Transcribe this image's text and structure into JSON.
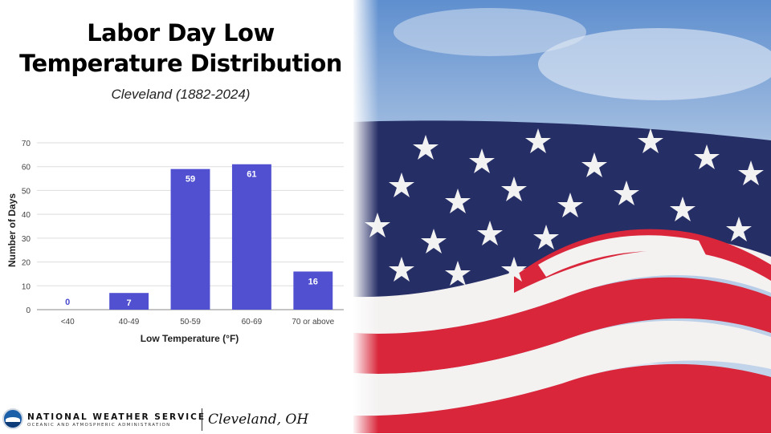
{
  "header": {
    "title_line1": "Labor Day Low",
    "title_line2": "Temperature Distribution",
    "subtitle": "Cleveland (1882-2024)"
  },
  "footer": {
    "agency_name": "NATIONAL WEATHER SERVICE",
    "agency_sub": "OCEANIC AND ATMOSPHERIC ADMINISTRATION",
    "office": "Cleveland, OH"
  },
  "chart_data": {
    "type": "bar",
    "categories": [
      "<40",
      "40-49",
      "50-59",
      "60-69",
      "70 or above"
    ],
    "values": [
      0,
      7,
      59,
      61,
      16
    ],
    "xlabel": "Low Temperature (°F)",
    "ylabel": "Number of Days",
    "ylim": [
      0,
      70
    ],
    "yticks": [
      0,
      10,
      20,
      30,
      40,
      50,
      60,
      70
    ],
    "grid": true,
    "data_labels": true,
    "colors": {
      "bar": "#5050d0",
      "label_inside": "#ffffff",
      "label_outside": "#4a4ad0",
      "grid": "#dddddd"
    }
  },
  "photo": {
    "subject": "american-flag-waving",
    "colors": {
      "sky": "#8fb3dd",
      "canton": "#262e66",
      "stripe_red": "#d9263a",
      "stripe_white": "#f4f1f1"
    }
  }
}
